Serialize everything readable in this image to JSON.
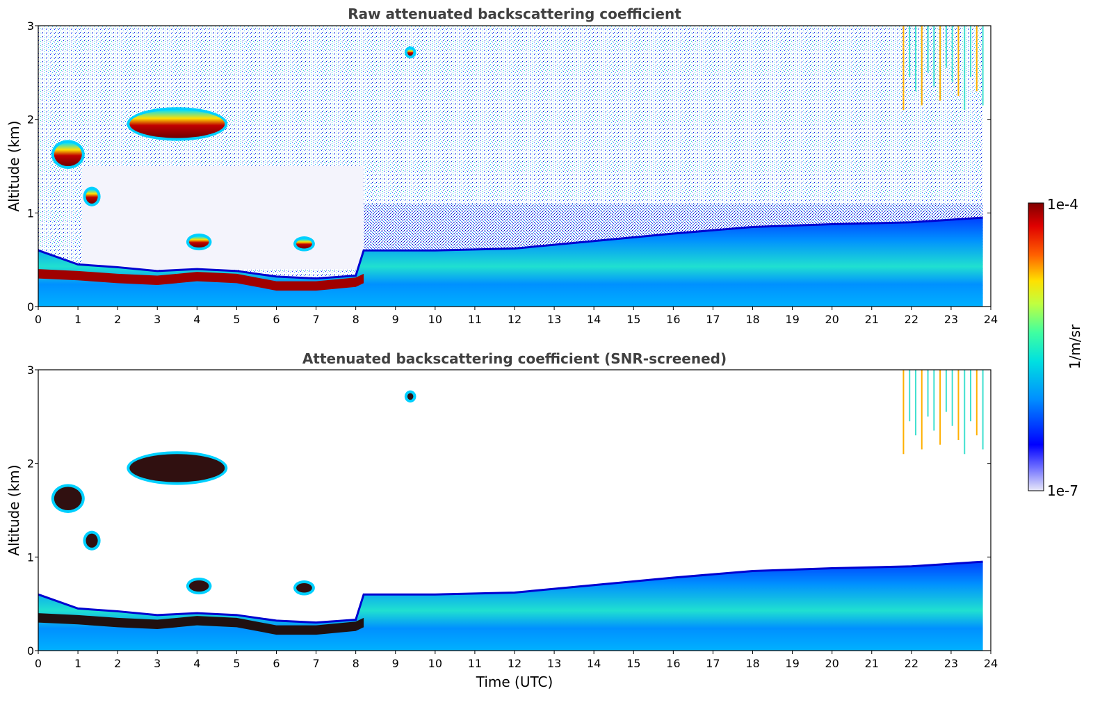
{
  "chart_data": [
    {
      "type": "heatmap",
      "title": "Raw attenuated backscattering coefficient",
      "xlabel": "",
      "ylabel": "Altitude (km)",
      "xlim": [
        0,
        24
      ],
      "ylim": [
        0,
        3
      ],
      "xticks": [
        "0",
        "1",
        "2",
        "3",
        "4",
        "5",
        "6",
        "7",
        "8",
        "9",
        "10",
        "11",
        "12",
        "13",
        "14",
        "15",
        "16",
        "17",
        "18",
        "19",
        "20",
        "21",
        "22",
        "23",
        "24"
      ],
      "yticks": [
        "0",
        "1",
        "2",
        "3"
      ],
      "data_end_hour": 23.8,
      "features": [
        {
          "kind": "aerosol_layer_top",
          "x": [
            0,
            1,
            2,
            3,
            4,
            5,
            6,
            7,
            8,
            8.2,
            10,
            12,
            14,
            16,
            18,
            20,
            22,
            23.8
          ],
          "y": [
            0.6,
            0.45,
            0.42,
            0.38,
            0.4,
            0.38,
            0.32,
            0.3,
            0.33,
            0.6,
            0.6,
            0.62,
            0.7,
            0.78,
            0.85,
            0.88,
            0.9,
            0.95
          ]
        },
        {
          "kind": "boundary_layer_cloud",
          "x": [
            0,
            1,
            2,
            3,
            4,
            5,
            6,
            7,
            8,
            8.2
          ],
          "y": [
            0.35,
            0.33,
            0.3,
            0.28,
            0.32,
            0.3,
            0.22,
            0.22,
            0.26,
            0.3
          ]
        },
        {
          "kind": "elevated_cloud",
          "x_range": [
            0.4,
            1.1
          ],
          "y_range": [
            1.5,
            1.75
          ]
        },
        {
          "kind": "elevated_cloud",
          "x_range": [
            2.3,
            4.7
          ],
          "y_range": [
            1.8,
            2.1
          ]
        },
        {
          "kind": "elevated_cloud",
          "x_range": [
            1.2,
            1.5
          ],
          "y_range": [
            1.1,
            1.25
          ]
        },
        {
          "kind": "elevated_cloud",
          "x_range": [
            3.8,
            4.3
          ],
          "y_range": [
            0.63,
            0.75
          ]
        },
        {
          "kind": "elevated_cloud",
          "x_range": [
            6.5,
            6.9
          ],
          "y_range": [
            0.62,
            0.72
          ]
        },
        {
          "kind": "elevated_cloud",
          "x_range": [
            9.3,
            9.45
          ],
          "y_range": [
            2.68,
            2.75
          ]
        },
        {
          "kind": "precipitation_streaks",
          "x_range": [
            21.8,
            23.8
          ],
          "y_range": [
            2.1,
            3.0
          ]
        }
      ]
    },
    {
      "type": "heatmap",
      "title": "Attenuated backscattering coefficient (SNR-screened)",
      "xlabel": "Time (UTC)",
      "ylabel": "Altitude (km)",
      "xlim": [
        0,
        24
      ],
      "ylim": [
        0,
        3
      ],
      "xticks": [
        "0",
        "1",
        "2",
        "3",
        "4",
        "5",
        "6",
        "7",
        "8",
        "9",
        "10",
        "11",
        "12",
        "13",
        "14",
        "15",
        "16",
        "17",
        "18",
        "19",
        "20",
        "21",
        "22",
        "23",
        "24"
      ],
      "yticks": [
        "0",
        "1",
        "2",
        "3"
      ],
      "data_end_hour": 23.8,
      "features": [
        {
          "kind": "aerosol_layer_top",
          "x": [
            0,
            1,
            2,
            3,
            4,
            5,
            6,
            7,
            8,
            8.2,
            10,
            12,
            14,
            16,
            18,
            20,
            22,
            23.8
          ],
          "y": [
            0.6,
            0.45,
            0.42,
            0.38,
            0.4,
            0.38,
            0.32,
            0.3,
            0.33,
            0.6,
            0.6,
            0.62,
            0.7,
            0.78,
            0.85,
            0.88,
            0.9,
            0.95
          ]
        },
        {
          "kind": "boundary_layer_cloud",
          "x": [
            0,
            1,
            2,
            3,
            4,
            5,
            6,
            7,
            8,
            8.2
          ],
          "y": [
            0.35,
            0.33,
            0.3,
            0.28,
            0.32,
            0.3,
            0.22,
            0.22,
            0.26,
            0.3
          ]
        },
        {
          "kind": "elevated_cloud",
          "x_range": [
            0.4,
            1.1
          ],
          "y_range": [
            1.5,
            1.75
          ]
        },
        {
          "kind": "elevated_cloud",
          "x_range": [
            2.3,
            4.7
          ],
          "y_range": [
            1.8,
            2.1
          ]
        },
        {
          "kind": "elevated_cloud",
          "x_range": [
            1.2,
            1.5
          ],
          "y_range": [
            1.1,
            1.25
          ]
        },
        {
          "kind": "elevated_cloud",
          "x_range": [
            3.8,
            4.3
          ],
          "y_range": [
            0.63,
            0.75
          ]
        },
        {
          "kind": "elevated_cloud",
          "x_range": [
            6.5,
            6.9
          ],
          "y_range": [
            0.62,
            0.72
          ]
        },
        {
          "kind": "elevated_cloud",
          "x_range": [
            9.3,
            9.45
          ],
          "y_range": [
            2.68,
            2.75
          ]
        },
        {
          "kind": "precipitation_streaks",
          "x_range": [
            21.8,
            23.8
          ],
          "y_range": [
            2.1,
            3.0
          ]
        }
      ]
    }
  ],
  "colorbar": {
    "label": "1/m/sr",
    "max_label": "1e-4",
    "min_label": "1e-7",
    "colormap": [
      "#e8e8f8",
      "#0000ff",
      "#00c8ff",
      "#40ffb0",
      "#c0ff40",
      "#ffe000",
      "#ff6000",
      "#ff0000",
      "#800000"
    ]
  }
}
